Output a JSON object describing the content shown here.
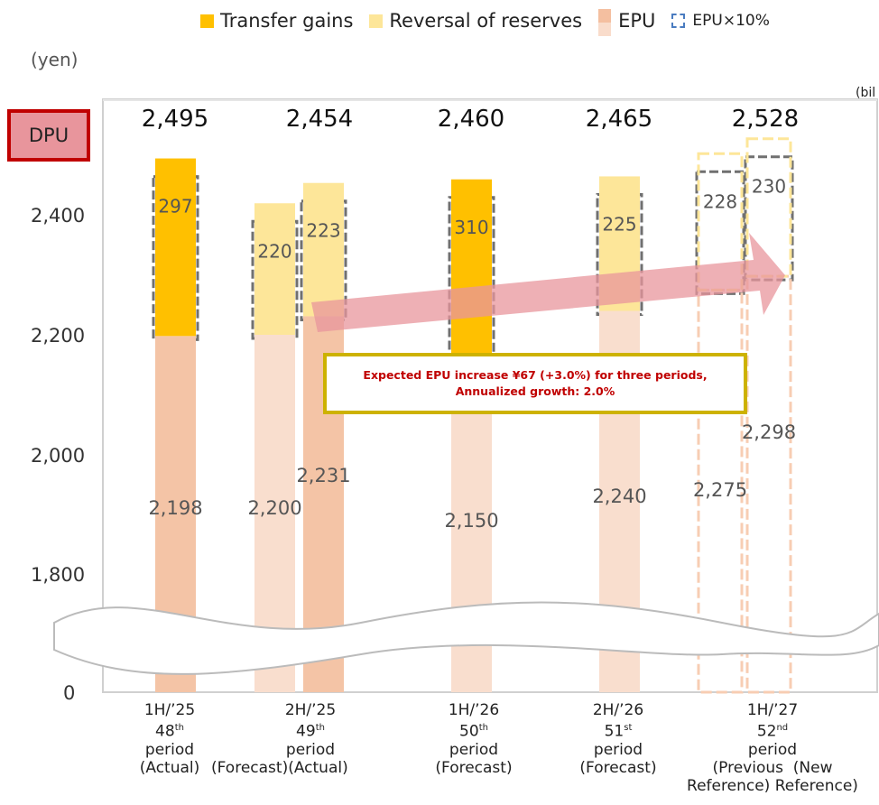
{
  "legend": {
    "transfer_gains": "Transfer gains",
    "reversal": "Reversal of reserves",
    "epu": "EPU",
    "epu10": "EPU×10%"
  },
  "axis_unit": "(yen)",
  "unit_right": "(bil",
  "dpu_label": "DPU",
  "callout": {
    "line1": "Expected EPU increase ¥67 (+3.0%) for three periods,",
    "line2": "Annualized growth: 2.0%"
  },
  "x_labels": [
    {
      "l1": "1H/’25",
      "num": "48",
      "sup": "th",
      "l3": "period",
      "l4": "(Actual)"
    },
    {
      "l1": "2H/’25",
      "num": "49",
      "sup": "th",
      "l3": "period",
      "l4": "(Forecast)(Actual)"
    },
    {
      "l1": "1H/’26",
      "num": "50",
      "sup": "th",
      "l3": "period",
      "l4": "(Forecast)"
    },
    {
      "l1": "2H/’26",
      "num": "51",
      "sup": "st",
      "l3": "period",
      "l4": "(Forecast)"
    },
    {
      "l1": "1H/’27",
      "num": "52",
      "sup": "nd",
      "l3": "period",
      "l4": "(Previous  (New",
      "l5": "Reference) Reference)"
    }
  ],
  "colors": {
    "transfer_gains": "#ffc000",
    "reversal": "#fde699",
    "epu_actual": "#f4c4a6",
    "epu_forecast": "#f9dece",
    "dashed": "#707070",
    "arrow": "#e8959c",
    "callout_border": "#cdb200",
    "callout_text": "#c00000"
  },
  "chart_data": {
    "type": "bar",
    "stacked": true,
    "ylabel": "(yen)",
    "yticks": [
      "0",
      "1,800",
      "2,000",
      "2,200",
      "2,400"
    ],
    "axis_break": [
      0,
      1800
    ],
    "ylim": [
      1800,
      2500
    ],
    "dpu_totals": [
      "2,495",
      "2,454",
      "2,460",
      "2,465",
      "2,528"
    ],
    "bars": [
      {
        "category": "1H/'25 48th period (Actual)",
        "epu": 2198,
        "epu_label": "2,198",
        "top_type": "transfer",
        "top_value": 297,
        "top_label": "297",
        "epu_style": "actual"
      },
      {
        "category": "2H/'25 49th period (Forecast)",
        "epu": 2200,
        "epu_label": "2,200",
        "top_type": "reversal",
        "top_value": 220,
        "top_label": "220",
        "epu_style": "forecast"
      },
      {
        "category": "2H/'25 49th period (Actual)",
        "epu": 2231,
        "epu_label": "2,231",
        "top_type": "reversal",
        "top_value": 223,
        "top_label": "223",
        "epu_style": "actual"
      },
      {
        "category": "1H/'26 50th period (Forecast)",
        "epu": 2150,
        "epu_label": "2,150",
        "top_type": "transfer",
        "top_value": 310,
        "top_label": "310",
        "epu_style": "forecast"
      },
      {
        "category": "2H/'26 51st period (Forecast)",
        "epu": 2240,
        "epu_label": "2,240",
        "top_type": "reversal",
        "top_value": 225,
        "top_label": "225",
        "epu_style": "forecast"
      },
      {
        "category": "1H/'27 52nd period (Previous Reference)",
        "epu": 2275,
        "epu_label": "2,275",
        "top_type": "reversal",
        "top_value": 228,
        "top_label": "228",
        "epu_style": "outline"
      },
      {
        "category": "1H/'27 52nd period (New Reference)",
        "epu": 2298,
        "epu_label": "2,298",
        "top_type": "reversal",
        "top_value": 230,
        "top_label": "230",
        "epu_style": "outline"
      }
    ]
  }
}
